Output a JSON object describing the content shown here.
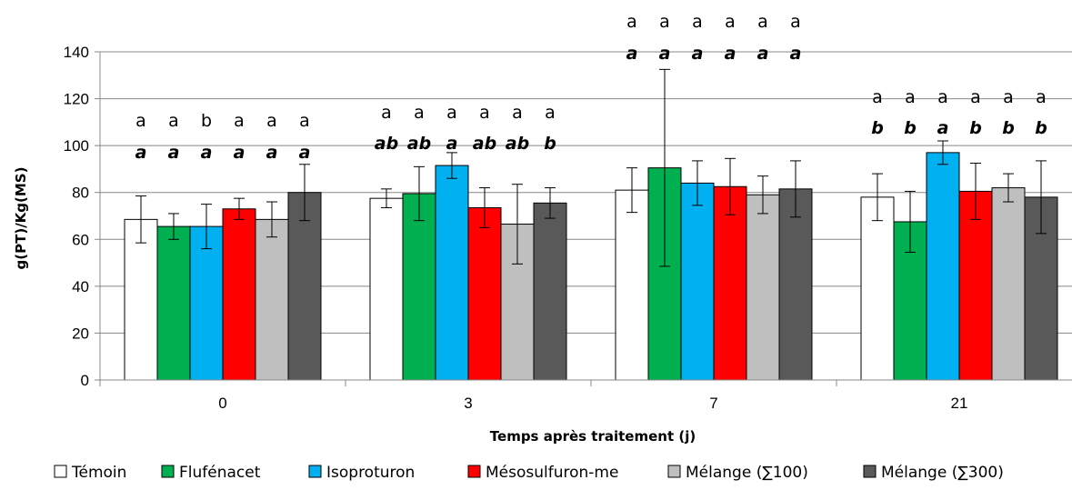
{
  "chart_data": {
    "type": "bar",
    "xlabel": "Temps après traitement (j)",
    "ylabel": "g(PT)/Kg(MS)",
    "ylim": [
      0,
      140
    ],
    "yticks": [
      0,
      20,
      40,
      60,
      80,
      100,
      120,
      140
    ],
    "grid": true,
    "legend_position": "bottom",
    "categories": [
      "0",
      "3",
      "7",
      "21"
    ],
    "series": [
      {
        "name": "Témoin",
        "color": "#ffffff",
        "values": [
          68.5,
          77.5,
          81,
          78
        ],
        "errors": [
          10,
          4,
          9.5,
          10
        ],
        "letters_top": [
          "a",
          "a",
          "a",
          "a"
        ],
        "letters_bottom": [
          "a",
          "ab",
          "a",
          "b"
        ]
      },
      {
        "name": "Flufénacet",
        "color": "#00b050",
        "values": [
          65.5,
          79.5,
          90.5,
          67.5
        ],
        "errors": [
          5.5,
          11.5,
          42,
          13
        ],
        "letters_top": [
          "a",
          "a",
          "a",
          "a"
        ],
        "letters_bottom": [
          "a",
          "ab",
          "a",
          "b"
        ]
      },
      {
        "name": "Isoproturon",
        "color": "#00b0f0",
        "values": [
          65.5,
          91.5,
          84,
          97
        ],
        "errors": [
          9.5,
          5.5,
          9.5,
          5
        ],
        "letters_top": [
          "b",
          "a",
          "a",
          "a"
        ],
        "letters_bottom": [
          "a",
          "a",
          "a",
          "a"
        ]
      },
      {
        "name": "Mésosulfuron-me",
        "color": "#ff0000",
        "values": [
          73,
          73.5,
          82.5,
          80.5
        ],
        "errors": [
          4.5,
          8.5,
          12,
          12
        ],
        "letters_top": [
          "a",
          "a",
          "a",
          "a"
        ],
        "letters_bottom": [
          "a",
          "ab",
          "a",
          "b"
        ]
      },
      {
        "name": "Mélange (∑100)",
        "color": "#bfbfbf",
        "values": [
          68.5,
          66.5,
          79,
          82
        ],
        "errors": [
          7.5,
          17,
          8,
          6
        ],
        "letters_top": [
          "a",
          "a",
          "a",
          "a"
        ],
        "letters_bottom": [
          "a",
          "ab",
          "a",
          "b"
        ]
      },
      {
        "name": "Mélange (∑300)",
        "color": "#595959",
        "values": [
          80,
          75.5,
          81.5,
          78
        ],
        "errors": [
          12,
          6.5,
          12,
          15.5
        ],
        "letters_top": [
          "a",
          "a",
          "a",
          "a"
        ],
        "letters_bottom": [
          "a",
          "b",
          "a",
          "b"
        ]
      }
    ]
  }
}
